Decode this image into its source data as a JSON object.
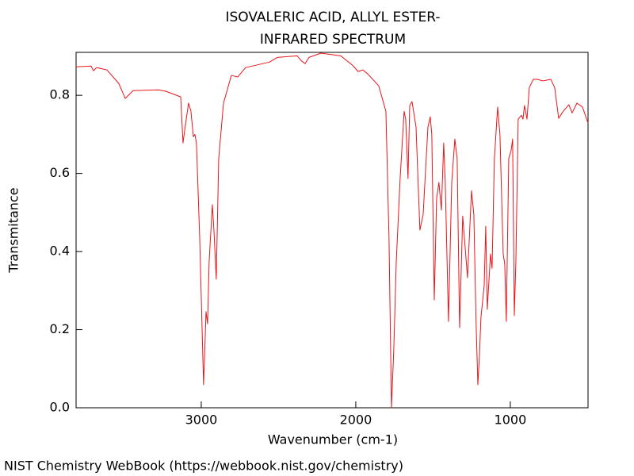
{
  "chart_data": {
    "type": "line",
    "title": "ISOVALERIC ACID, ALLYL ESTER-",
    "subtitle": "INFRARED SPECTRUM",
    "xlabel": "Wavenumber (cm-1)",
    "ylabel": "Transmitance",
    "source": "NIST Chemistry WebBook (https://webbook.nist.gov/chemistry)",
    "color": "#e8151b",
    "xlim": [
      3810,
      497
    ],
    "ylim": [
      0,
      0.91
    ],
    "xticks": [
      3000,
      2000,
      1000
    ],
    "yticks": [
      {
        "value": 0,
        "label": "0.0"
      },
      0.2,
      0.4,
      0.6,
      0.8
    ],
    "x": [
      3810,
      3713,
      3697,
      3677,
      3610,
      3533,
      3492,
      3441,
      3277,
      3226,
      3133,
      3118,
      3103,
      3082,
      3067,
      3051,
      3041,
      3031,
      3010,
      2985,
      2969,
      2959,
      2949,
      2928,
      2918,
      2903,
      2887,
      2856,
      2805,
      2764,
      2713,
      2559,
      2508,
      2379,
      2354,
      2328,
      2303,
      2226,
      2097,
      2021,
      1985,
      1954,
      1918,
      1851,
      1805,
      1785,
      1769,
      1754,
      1738,
      1713,
      1687,
      1677,
      1667,
      1662,
      1651,
      1636,
      1610,
      1585,
      1564,
      1533,
      1518,
      1508,
      1492,
      1477,
      1462,
      1446,
      1431,
      1421,
      1400,
      1379,
      1359,
      1344,
      1328,
      1308,
      1297,
      1277,
      1251,
      1236,
      1221,
      1210,
      1200,
      1190,
      1169,
      1159,
      1149,
      1128,
      1118,
      1103,
      1082,
      1067,
      1046,
      1036,
      1026,
      1010,
      995,
      985,
      974,
      964,
      949,
      928,
      918,
      908,
      892,
      877,
      851,
      826,
      790,
      738,
      713,
      687,
      662,
      621,
      600,
      569,
      533,
      497
    ],
    "values": [
      0.873,
      0.875,
      0.863,
      0.871,
      0.865,
      0.83,
      0.792,
      0.812,
      0.814,
      0.81,
      0.796,
      0.678,
      0.723,
      0.78,
      0.76,
      0.694,
      0.7,
      0.678,
      0.435,
      0.059,
      0.246,
      0.215,
      0.374,
      0.52,
      0.455,
      0.329,
      0.638,
      0.78,
      0.851,
      0.847,
      0.871,
      0.885,
      0.897,
      0.901,
      0.889,
      0.881,
      0.897,
      0.908,
      0.901,
      0.877,
      0.861,
      0.865,
      0.853,
      0.824,
      0.759,
      0.435,
      0.0,
      0.15,
      0.374,
      0.587,
      0.759,
      0.739,
      0.638,
      0.587,
      0.774,
      0.784,
      0.719,
      0.455,
      0.495,
      0.719,
      0.745,
      0.699,
      0.276,
      0.536,
      0.577,
      0.506,
      0.678,
      0.577,
      0.221,
      0.577,
      0.688,
      0.638,
      0.205,
      0.491,
      0.435,
      0.333,
      0.556,
      0.495,
      0.211,
      0.059,
      0.13,
      0.231,
      0.313,
      0.465,
      0.252,
      0.394,
      0.357,
      0.638,
      0.77,
      0.699,
      0.394,
      0.368,
      0.221,
      0.638,
      0.658,
      0.688,
      0.236,
      0.374,
      0.739,
      0.749,
      0.739,
      0.774,
      0.739,
      0.82,
      0.841,
      0.841,
      0.837,
      0.841,
      0.82,
      0.741,
      0.757,
      0.776,
      0.755,
      0.78,
      0.77,
      0.729
    ]
  }
}
